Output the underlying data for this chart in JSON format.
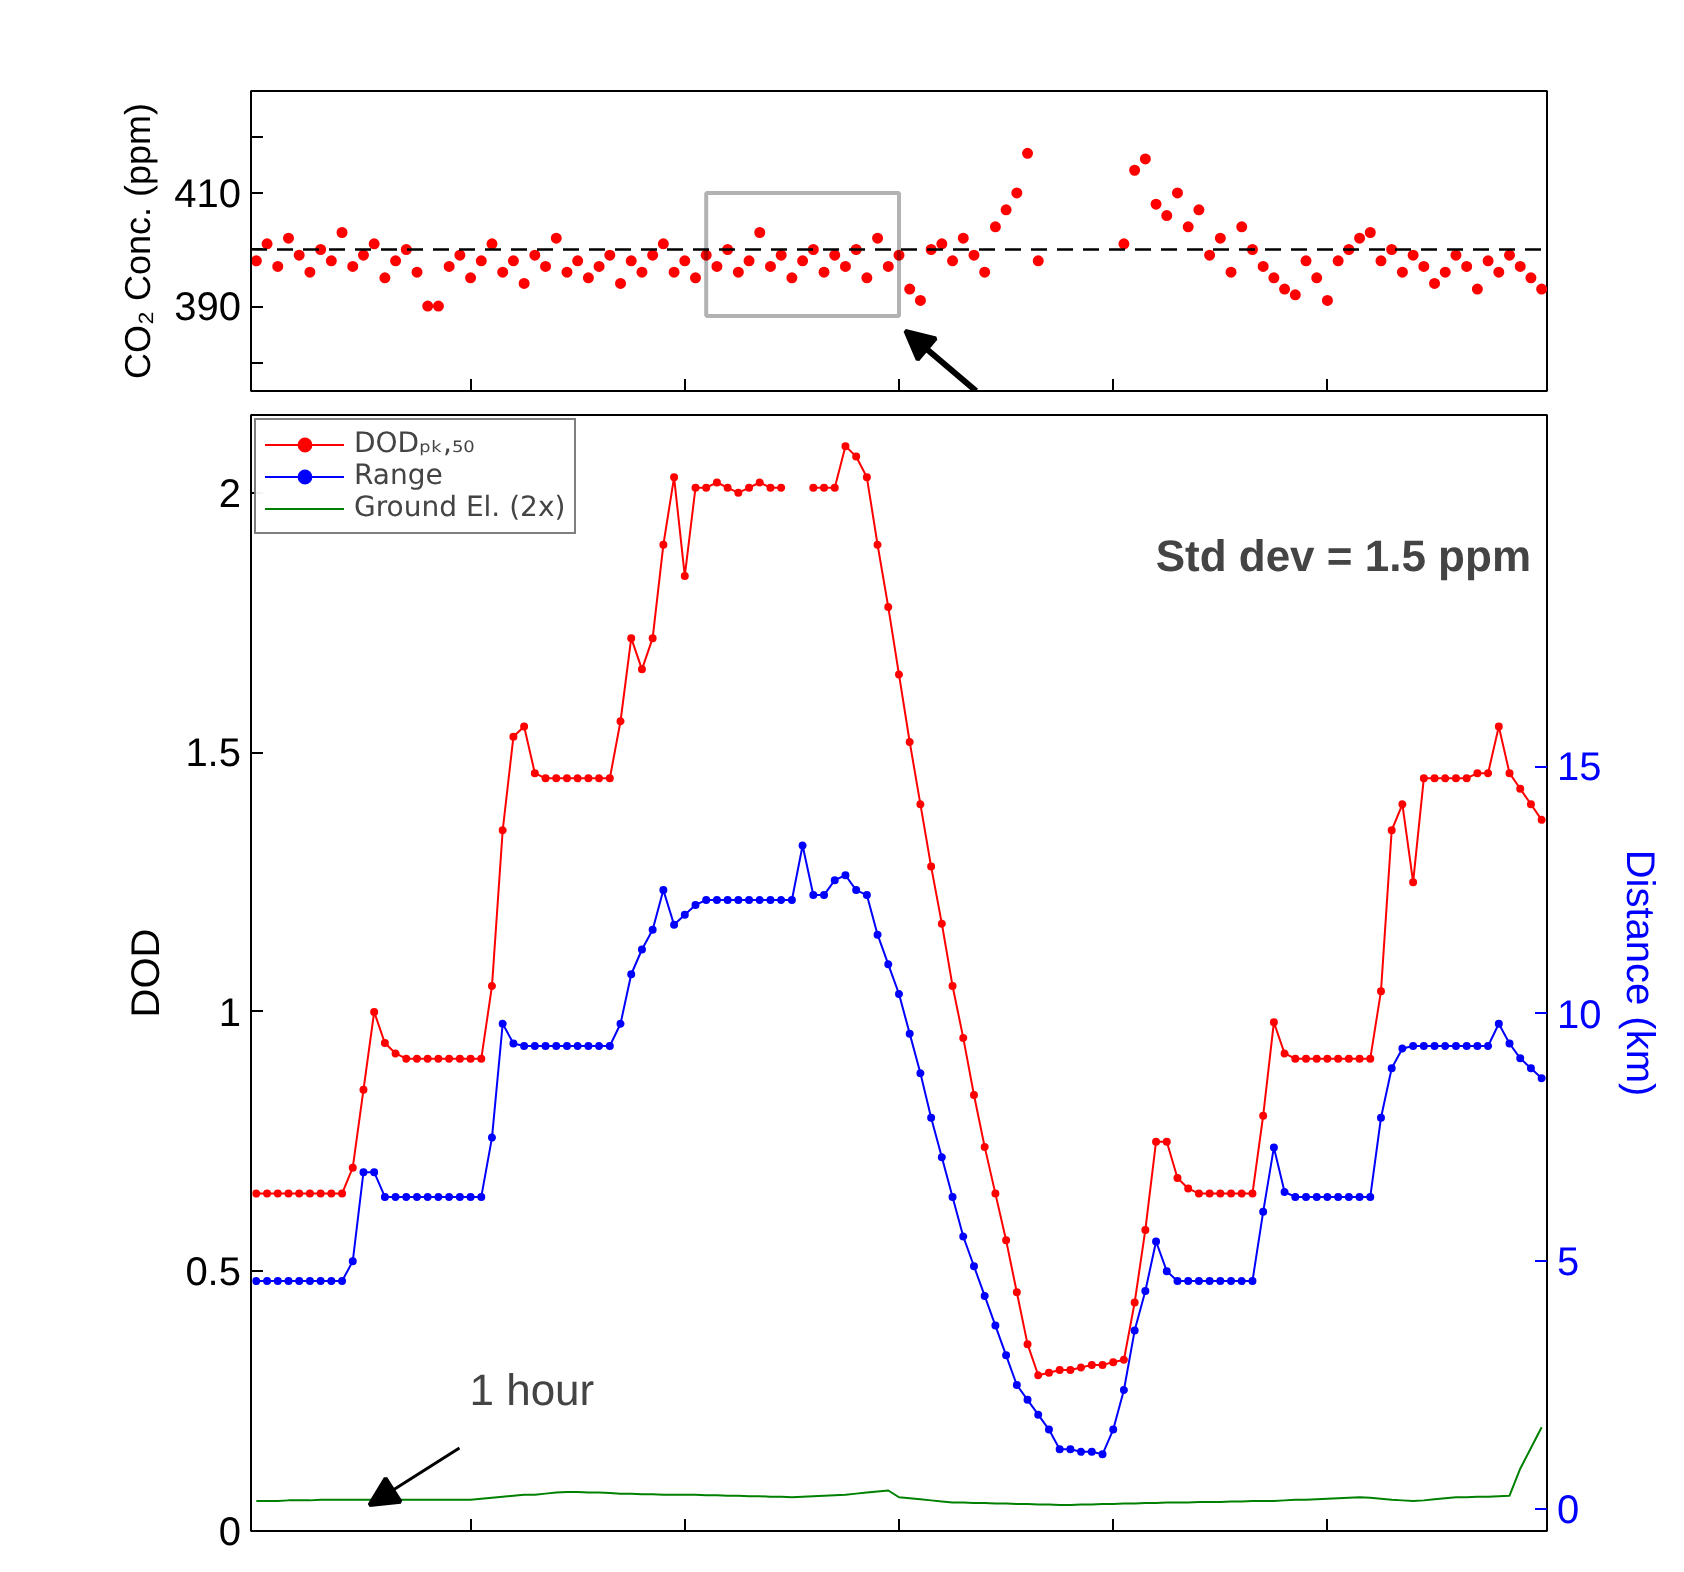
{
  "chart_data": [
    {
      "type": "scatter",
      "ylabel": "CO₂ Conc. (ppm)",
      "marker": "circle",
      "ylim": [
        375,
        428
      ],
      "yticks": [
        {
          "value": 380,
          "label": null
        },
        390,
        {
          "value": 400,
          "label": null
        },
        410,
        {
          "value": 420,
          "label": null
        }
      ],
      "grid": false,
      "legend": false,
      "categories": [
        null,
        null,
        null,
        null,
        null,
        null,
        null,
        null,
        null,
        null,
        null,
        null,
        null,
        null,
        null,
        null,
        null,
        null,
        null,
        null,
        null,
        null,
        null,
        null,
        null,
        null,
        null,
        null,
        null,
        null,
        null,
        null,
        null,
        null,
        null,
        null,
        null,
        null,
        null,
        null,
        null,
        null,
        null,
        null,
        null,
        null,
        null,
        null,
        null,
        null,
        null,
        null,
        null,
        null,
        null,
        null,
        null,
        null,
        null,
        null,
        null,
        null,
        null,
        null,
        null,
        null,
        null,
        null,
        null,
        null,
        null,
        null,
        null,
        null,
        null,
        null,
        null,
        null,
        null,
        null,
        null,
        null,
        null,
        null,
        null,
        null,
        null,
        null,
        null,
        null,
        null,
        null,
        null,
        null,
        null,
        null,
        null,
        null,
        null,
        null,
        null,
        null,
        null,
        null,
        null,
        null,
        null,
        null,
        null,
        null,
        null,
        null,
        null,
        null,
        null,
        null,
        null,
        null,
        null,
        null,
        null
      ],
      "ref_lines": [
        {
          "axis": "y",
          "value": 400,
          "line_style": "dashed",
          "color": "#000000"
        }
      ],
      "series": [
        {
          "color": "#ff0000",
          "values": [
            398,
            401,
            397,
            402,
            399,
            396,
            400,
            398,
            403,
            397,
            399,
            401,
            395,
            398,
            400,
            396,
            390,
            390,
            397,
            399,
            395,
            398,
            401,
            396,
            398,
            394,
            399,
            397,
            402,
            396,
            398,
            395,
            397,
            399,
            394,
            398,
            396,
            399,
            401,
            396,
            398,
            395,
            399,
            397,
            400,
            396,
            398,
            403,
            397,
            399,
            395,
            398,
            400,
            396,
            399,
            397,
            400,
            395,
            402,
            397,
            399,
            393,
            391,
            400,
            401,
            398,
            402,
            399,
            396,
            404,
            407,
            410,
            417,
            398,
            null,
            null,
            null,
            null,
            null,
            null,
            null,
            401,
            414,
            416,
            408,
            406,
            410,
            404,
            407,
            399,
            402,
            396,
            404,
            400,
            397,
            395,
            393,
            392,
            398,
            395,
            391,
            398,
            400,
            402,
            403,
            398,
            400,
            396,
            399,
            397,
            394,
            396,
            399,
            397,
            393,
            398,
            396,
            399,
            397,
            395,
            393
          ]
        }
      ]
    },
    {
      "type": "line",
      "ylabel": "DOD",
      "y2label": "Distance (km)",
      "marker": "circle",
      "legend": "top left",
      "grid": false,
      "categories": [
        null,
        null,
        null,
        null,
        null,
        null,
        null,
        null,
        null,
        null,
        null,
        null,
        null,
        null,
        null,
        null,
        null,
        null,
        null,
        null,
        null,
        null,
        null,
        null,
        null,
        null,
        null,
        null,
        null,
        null,
        null,
        null,
        null,
        null,
        null,
        null,
        null,
        null,
        null,
        null,
        null,
        null,
        null,
        null,
        null,
        null,
        null,
        null,
        null,
        null,
        null,
        null,
        null,
        null,
        null,
        null,
        null,
        null,
        null,
        null,
        null,
        null,
        null,
        null,
        null,
        null,
        null,
        null,
        null,
        null,
        null,
        null,
        null,
        null,
        null,
        null,
        null,
        null,
        null,
        null,
        null,
        null,
        null,
        null,
        null,
        null,
        null,
        null,
        null,
        null,
        null,
        null,
        null,
        null,
        null,
        null,
        null,
        null,
        null,
        null,
        null,
        null,
        null,
        null,
        null,
        null,
        null,
        null,
        null,
        null,
        null,
        null,
        null,
        null,
        null,
        null,
        null,
        null,
        null,
        null,
        null
      ],
      "ylim": [
        0,
        2.15
      ],
      "yticks": [
        0,
        0.5,
        1,
        1.5,
        2
      ],
      "y2lim": [
        -0.45,
        22.1
      ],
      "y2ticks": [
        0,
        5,
        10,
        15
      ],
      "annotations": [
        {
          "text": "1 hour",
          "y": 0.05
        },
        "Std dev = 1.5 ppm"
      ],
      "series": [
        {
          "name": "DODₚₖ,₅₀",
          "color": "#ff0000",
          "marker": "circle",
          "values": [
            0.65,
            0.65,
            0.65,
            0.65,
            0.65,
            0.65,
            0.65,
            0.65,
            0.65,
            0.7,
            0.85,
            1.0,
            0.94,
            0.92,
            0.91,
            0.91,
            0.91,
            0.91,
            0.91,
            0.91,
            0.91,
            0.91,
            1.05,
            1.35,
            1.53,
            1.55,
            1.46,
            1.45,
            1.45,
            1.45,
            1.45,
            1.45,
            1.45,
            1.45,
            1.56,
            1.72,
            1.66,
            1.72,
            1.9,
            2.03,
            1.84,
            2.01,
            2.01,
            2.02,
            2.01,
            2.0,
            2.01,
            2.02,
            2.01,
            2.01,
            null,
            null,
            2.01,
            2.01,
            2.01,
            2.09,
            2.07,
            2.03,
            1.9,
            1.78,
            1.65,
            1.52,
            1.4,
            1.28,
            1.17,
            1.05,
            0.95,
            0.84,
            0.74,
            0.65,
            0.56,
            0.46,
            0.36,
            0.3,
            0.305,
            0.31,
            0.31,
            0.315,
            0.32,
            0.32,
            0.325,
            0.33,
            0.44,
            0.58,
            0.75,
            0.75,
            0.68,
            0.66,
            0.65,
            0.65,
            0.65,
            0.65,
            0.65,
            0.65,
            0.8,
            0.98,
            0.92,
            0.91,
            0.91,
            0.91,
            0.91,
            0.91,
            0.91,
            0.91,
            0.91,
            1.04,
            1.35,
            1.4,
            1.25,
            1.45,
            1.45,
            1.45,
            1.45,
            1.45,
            1.46,
            1.46,
            1.55,
            1.46,
            1.43,
            1.4,
            1.37
          ]
        },
        {
          "name": "Range",
          "color": "#0000ff",
          "marker": "circle",
          "axis": "y2",
          "values": [
            4.6,
            4.6,
            4.6,
            4.6,
            4.6,
            4.6,
            4.6,
            4.6,
            4.6,
            5.0,
            6.8,
            6.8,
            6.3,
            6.3,
            6.3,
            6.3,
            6.3,
            6.3,
            6.3,
            6.3,
            6.3,
            6.3,
            7.5,
            9.8,
            9.4,
            9.35,
            9.35,
            9.35,
            9.35,
            9.35,
            9.35,
            9.35,
            9.35,
            9.35,
            9.8,
            10.8,
            11.3,
            11.7,
            12.5,
            11.8,
            12.0,
            12.2,
            12.3,
            12.3,
            12.3,
            12.3,
            12.3,
            12.3,
            12.3,
            12.3,
            12.3,
            13.4,
            12.4,
            12.4,
            12.7,
            12.8,
            12.5,
            12.4,
            11.6,
            11.0,
            10.4,
            9.6,
            8.8,
            7.9,
            7.1,
            6.3,
            5.5,
            4.9,
            4.3,
            3.7,
            3.1,
            2.5,
            2.2,
            1.9,
            1.6,
            1.2,
            1.2,
            1.15,
            1.15,
            1.1,
            1.6,
            2.4,
            3.6,
            4.4,
            5.4,
            4.8,
            4.6,
            4.6,
            4.6,
            4.6,
            4.6,
            4.6,
            4.6,
            4.6,
            6.0,
            7.3,
            6.4,
            6.3,
            6.3,
            6.3,
            6.3,
            6.3,
            6.3,
            6.3,
            6.3,
            7.9,
            8.9,
            9.3,
            9.35,
            9.35,
            9.35,
            9.35,
            9.35,
            9.35,
            9.35,
            9.35,
            9.8,
            9.4,
            9.1,
            8.9,
            8.7
          ]
        },
        {
          "name": "Ground El. (2x)",
          "color": "#008000",
          "marker": "none",
          "values": [
            0.058,
            0.058,
            0.058,
            0.059,
            0.059,
            0.059,
            0.06,
            0.06,
            0.06,
            0.06,
            0.06,
            0.06,
            0.06,
            0.06,
            0.06,
            0.06,
            0.06,
            0.06,
            0.06,
            0.06,
            0.06,
            0.062,
            0.064,
            0.066,
            0.068,
            0.07,
            0.07,
            0.072,
            0.074,
            0.075,
            0.075,
            0.074,
            0.074,
            0.073,
            0.072,
            0.072,
            0.071,
            0.071,
            0.07,
            0.07,
            0.07,
            0.07,
            0.069,
            0.069,
            0.068,
            0.068,
            0.067,
            0.067,
            0.066,
            0.066,
            0.065,
            0.066,
            0.067,
            0.068,
            0.069,
            0.07,
            0.072,
            0.074,
            0.076,
            0.078,
            0.065,
            0.063,
            0.061,
            0.059,
            0.057,
            0.055,
            0.055,
            0.054,
            0.054,
            0.053,
            0.053,
            0.052,
            0.052,
            0.051,
            0.051,
            0.05,
            0.05,
            0.051,
            0.051,
            0.052,
            0.052,
            0.053,
            0.053,
            0.054,
            0.054,
            0.055,
            0.055,
            0.055,
            0.056,
            0.056,
            0.056,
            0.057,
            0.057,
            0.058,
            0.058,
            0.058,
            0.059,
            0.06,
            0.06,
            0.061,
            0.062,
            0.063,
            0.064,
            0.065,
            0.064,
            0.062,
            0.06,
            0.059,
            0.058,
            0.059,
            0.061,
            0.063,
            0.065,
            0.065,
            0.066,
            0.066,
            0.067,
            0.068,
            0.12,
            0.16,
            0.2
          ]
        }
      ]
    }
  ]
}
